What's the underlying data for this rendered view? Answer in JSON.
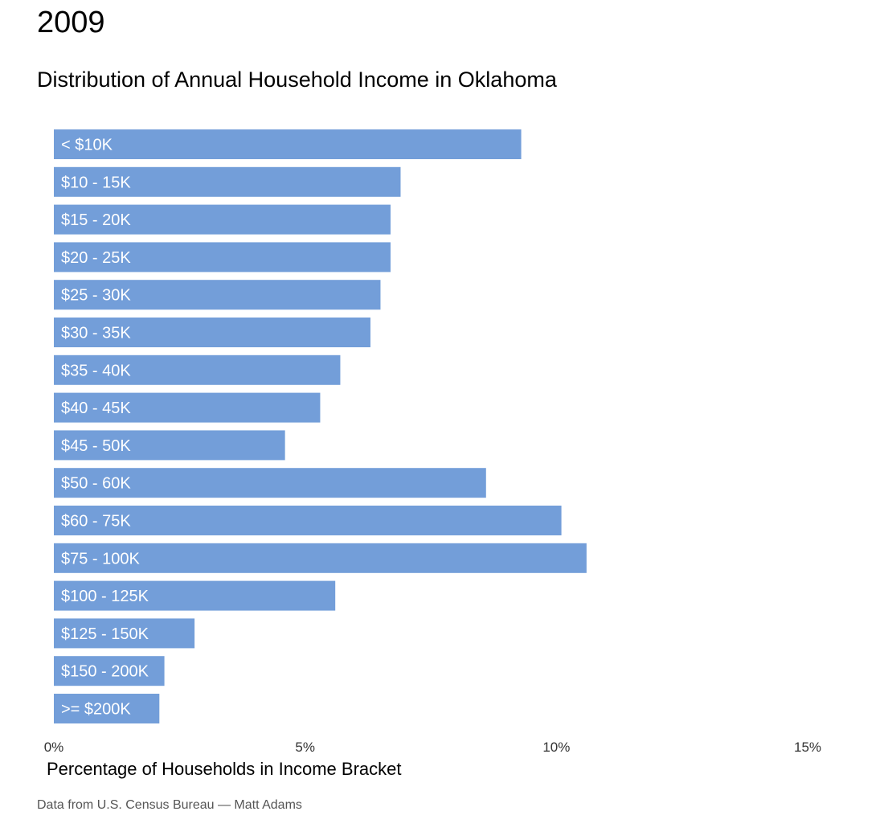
{
  "header": {
    "year": "2009",
    "title": "Distribution of Annual Household Income in Oklahoma"
  },
  "caption": "Data from U.S. Census Bureau — Matt Adams",
  "colors": {
    "bar": "#739ED9",
    "bar_label": "#ffffff"
  },
  "chart_data": {
    "type": "bar",
    "orientation": "horizontal",
    "title": "Distribution of Annual Household Income in Oklahoma",
    "xlabel": "Percentage of Households in Income Bracket",
    "ylabel": "",
    "xlim": [
      0,
      15
    ],
    "ticks": [
      {
        "value": 0,
        "label": "0%"
      },
      {
        "value": 5,
        "label": "5%"
      },
      {
        "value": 10,
        "label": "10%"
      },
      {
        "value": 15,
        "label": "15%"
      }
    ],
    "grid": false,
    "categories": [
      "< $10K",
      "$10 - 15K",
      "$15 - 20K",
      "$20 - 25K",
      "$25 - 30K",
      "$30 - 35K",
      "$35 - 40K",
      "$40 - 45K",
      "$45 - 50K",
      "$50 - 60K",
      "$60 - 75K",
      "$75 - 100K",
      "$100 - 125K",
      "$125 - 150K",
      "$150 - 200K",
      ">= $200K"
    ],
    "values": [
      9.3,
      6.9,
      6.7,
      6.7,
      6.5,
      6.3,
      5.7,
      5.3,
      4.6,
      8.6,
      10.1,
      10.6,
      5.6,
      2.8,
      2.2,
      2.1
    ]
  }
}
